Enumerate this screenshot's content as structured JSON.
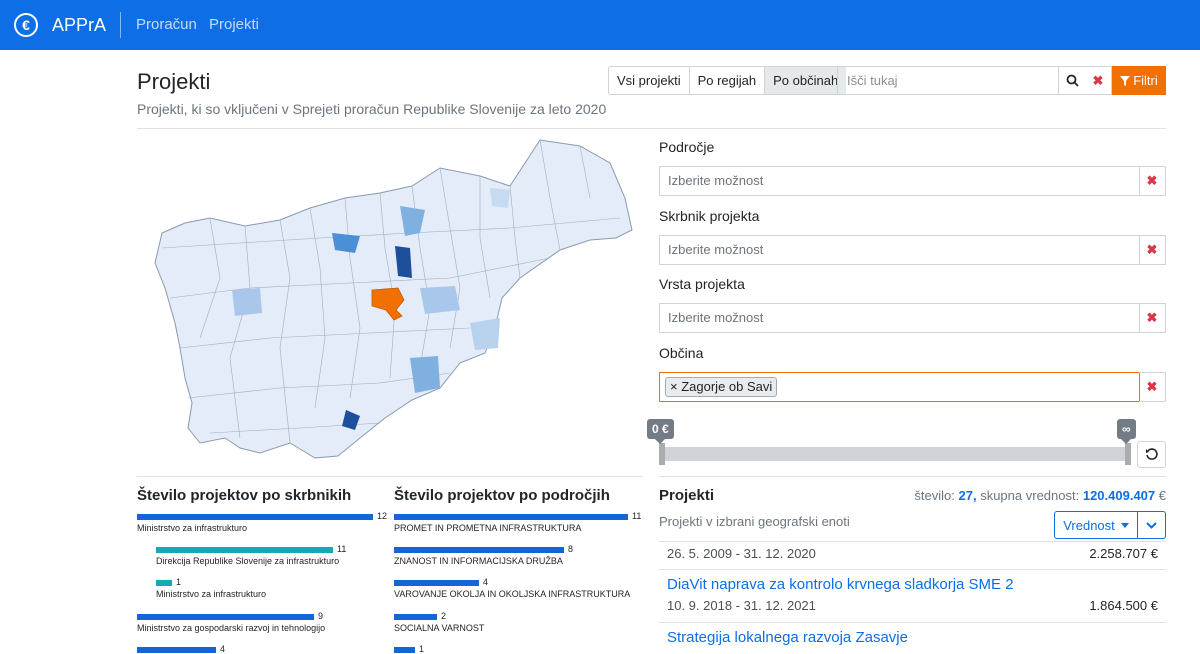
{
  "navbar": {
    "brand": "APPrA",
    "logo_symbol": "€",
    "links": [
      "Proračun",
      "Projekti"
    ]
  },
  "header": {
    "title": "Projekti",
    "subtitle": "Projekti, ki so vključeni v Sprejeti proračun Republike Slovenije za leto 2020"
  },
  "toolbar": {
    "view_options": [
      "Vsi projekti",
      "Po regijah",
      "Po občinah"
    ],
    "active_view": "Po občinah",
    "search_placeholder": "Išči tukaj",
    "search_icon": "search-icon",
    "clear_icon": "close-icon",
    "filter_label": "Filtri",
    "filter_icon": "funnel-icon"
  },
  "filters": {
    "area_label": "Področje",
    "area_placeholder": "Izberite možnost",
    "owner_label": "Skrbnik projekta",
    "owner_placeholder": "Izberite možnost",
    "type_label": "Vrsta projekta",
    "type_placeholder": "Izberite možnost",
    "municipality_label": "Občina",
    "municipality_chip_remove": "×",
    "municipality_selected": "Zagorje ob Savi",
    "clear_symbol": "✖"
  },
  "value_slider": {
    "min_label": "0 €",
    "max_label": "∞",
    "reset_icon": "reset-icon"
  },
  "colors": {
    "primary": "#0d6ee6",
    "highlight": "#f27000",
    "bar_owner": "#1565d8",
    "bar_sub": "#17a8b8"
  },
  "owners_chart": {
    "title": "Število projektov po skrbnikih",
    "rows": [
      {
        "label": "Ministrstvo za infrastrukturo",
        "value": 12,
        "sub": false
      },
      {
        "label": "Direkcija Republike Slovenije za infrastrukturo",
        "value": 11,
        "sub": true
      },
      {
        "label": "Ministrstvo za infrastrukturo",
        "value": 1,
        "sub": true
      },
      {
        "label": "Ministrstvo za gospodarski razvoj in tehnologijo",
        "value": 9,
        "sub": false
      },
      {
        "label": "",
        "value": 4,
        "sub": false
      }
    ]
  },
  "areas_chart": {
    "title": "Število projektov po področjih",
    "rows": [
      {
        "label": "PROMET IN PROMETNA INFRASTRUKTURA",
        "value": 11
      },
      {
        "label": "ZNANOST IN INFORMACIJSKA DRUŽBA",
        "value": 8
      },
      {
        "label": "VAROVANJE OKOLJA IN OKOLJSKA INFRASTRUKTURA",
        "value": 4
      },
      {
        "label": "SOCIALNA VARNOST",
        "value": 2
      },
      {
        "label": "",
        "value": 1
      }
    ]
  },
  "projects": {
    "title": "Projekti",
    "count_label": "število:",
    "count_value": "27,",
    "total_label": "skupna vrednost:",
    "total_value": "120.409.407",
    "total_unit": "€",
    "subtitle": "Projekti v izbrani geografski enoti",
    "sort_label": "Vrednost",
    "items": [
      {
        "name": "",
        "dates": "26. 5. 2009 - 31. 12. 2020",
        "value": "2.258.707 €"
      },
      {
        "name": "DiaVit naprava za kontrolo krvnega sladkorja SME 2",
        "dates": "10. 9. 2018 - 31. 12. 2021",
        "value": "1.864.500 €"
      },
      {
        "name": "Strategija lokalnega razvoja Zasavje",
        "dates": "",
        "value": ""
      }
    ]
  }
}
